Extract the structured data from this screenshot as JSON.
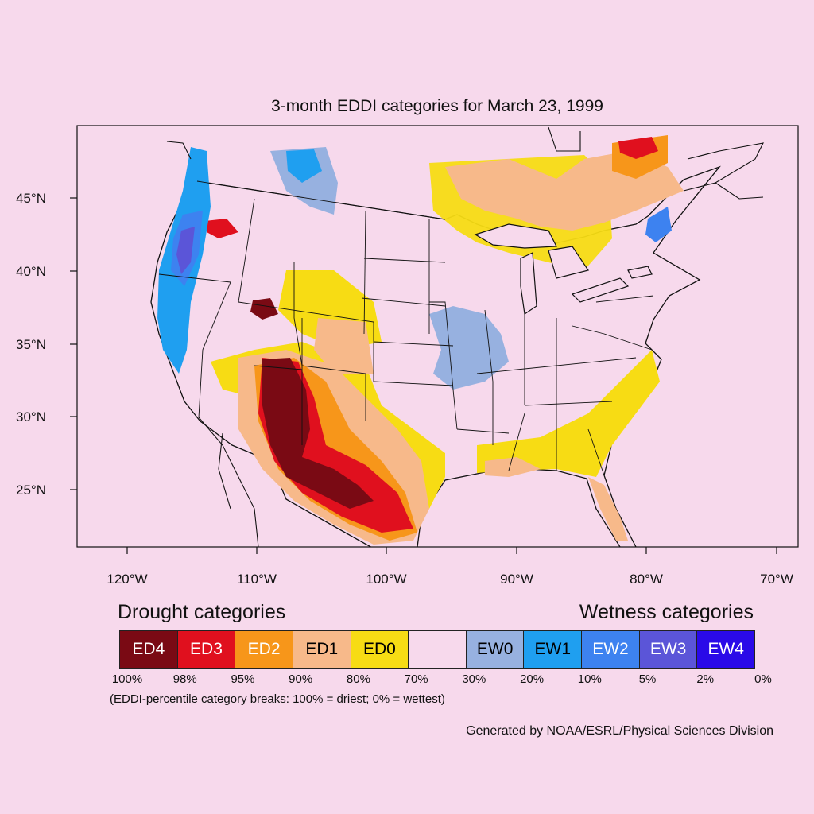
{
  "title": "3-month EDDI categories for March 23, 1999",
  "lat_labels": [
    "45°N",
    "40°N",
    "35°N",
    "30°N",
    "25°N"
  ],
  "lon_labels": [
    "120°W",
    "110°W",
    "100°W",
    "90°W",
    "80°W",
    "70°W"
  ],
  "legend": {
    "drought_heading": "Drought categories",
    "wetness_heading": "Wetness categories",
    "categories": [
      {
        "label": "ED4",
        "color": "#7a0a14",
        "text_color": "#ffffff"
      },
      {
        "label": "ED3",
        "color": "#e0101e",
        "text_color": "#ffffff"
      },
      {
        "label": "ED2",
        "color": "#f7961a",
        "text_color": "#ffffff"
      },
      {
        "label": "ED1",
        "color": "#f7b98a",
        "text_color": "#000000"
      },
      {
        "label": "ED0",
        "color": "#f7dc14",
        "text_color": "#000000"
      },
      {
        "label": "",
        "color": "#f7d9ec",
        "text_color": "#000000"
      },
      {
        "label": "EW0",
        "color": "#97b1e0",
        "text_color": "#000000"
      },
      {
        "label": "EW1",
        "color": "#1f9ff0",
        "text_color": "#000000"
      },
      {
        "label": "EW2",
        "color": "#3d82f0",
        "text_color": "#ffffff"
      },
      {
        "label": "EW3",
        "color": "#5b55d8",
        "text_color": "#ffffff"
      },
      {
        "label": "EW4",
        "color": "#2a0ae8",
        "text_color": "#ffffff"
      }
    ],
    "percentiles": [
      "100%",
      "98%",
      "95%",
      "90%",
      "80%",
      "70%",
      "30%",
      "20%",
      "10%",
      "5%",
      "2%",
      "0%"
    ],
    "note": "(EDDI-percentile category breaks: 100% = driest; 0% = wettest)"
  },
  "credit": "Generated by NOAA/ESRL/Physical Sciences Division"
}
